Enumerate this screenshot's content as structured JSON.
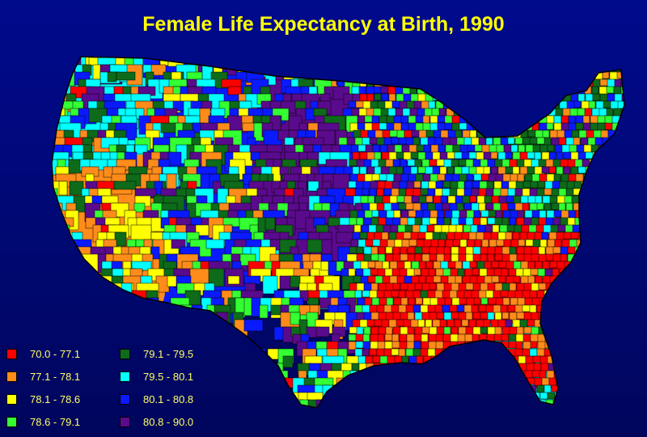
{
  "title": "Female Life Expectancy at Birth, 1990",
  "colors": {
    "background": "#000a8c",
    "title_text": "#ffff00",
    "legend_text": "#ffff66"
  },
  "legend": {
    "items": [
      {
        "label": "70.0 - 77.1",
        "color": "#ff0000"
      },
      {
        "label": "77.1 - 78.1",
        "color": "#ff8c1a"
      },
      {
        "label": "78.1 - 78.6",
        "color": "#ffff00"
      },
      {
        "label": "78.6 - 79.1",
        "color": "#33ff33"
      },
      {
        "label": "79.1 - 79.5",
        "color": "#0d6b1a"
      },
      {
        "label": "79.5 - 80.1",
        "color": "#00ffff"
      },
      {
        "label": "80.1 - 80.8",
        "color": "#0a1aff"
      },
      {
        "label": "80.8 - 90.0",
        "color": "#5a0a8c"
      }
    ]
  },
  "map": {
    "dominant_class_by_region": [
      {
        "region": "Pacific Northwest",
        "class": "79.5 - 80.1"
      },
      {
        "region": "California / Nevada",
        "class": "77.1 - 78.1"
      },
      {
        "region": "Mountain West",
        "class": "80.1 - 80.8"
      },
      {
        "region": "Great Plains",
        "class": "80.8 - 90.0"
      },
      {
        "region": "Midwest",
        "class": "80.1 - 80.8"
      },
      {
        "region": "Southeast",
        "class": "70.0 - 77.1"
      },
      {
        "region": "Northeast",
        "class": "79.1 - 79.5"
      },
      {
        "region": "Florida",
        "class": "79.5 - 80.1"
      }
    ]
  }
}
